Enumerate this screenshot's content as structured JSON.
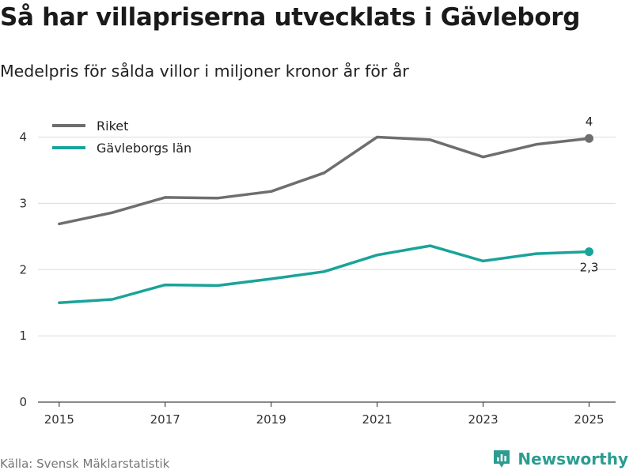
{
  "title": "Så har villapriserna utvecklats i Gävleborg",
  "subtitle": "Medelpris för sålda villor i miljoner kronor år för år",
  "source": "Källa: Svensk Mäklarstatistik",
  "brand": "Newsworthy",
  "colors": {
    "riket": "#6e6e6e",
    "gavleborg": "#1aa39a",
    "grid": "#dcdcdc",
    "axis": "#444444",
    "brand": "#2a9d90"
  },
  "chart_data": {
    "type": "line",
    "title": "Så har villapriserna utvecklats i Gävleborg",
    "subtitle": "Medelpris för sålda villor i miljoner kronor år för år",
    "xlabel": "",
    "ylabel": "",
    "x": [
      2015,
      2016,
      2017,
      2018,
      2019,
      2020,
      2021,
      2022,
      2023,
      2024,
      2025
    ],
    "xticks": [
      2015,
      2017,
      2019,
      2021,
      2023,
      2025
    ],
    "xtick_labels": [
      "2015",
      "2017",
      "2019",
      "2021",
      "2023",
      "2025"
    ],
    "yticks": [
      0,
      1,
      2,
      3,
      4
    ],
    "ytick_labels": [
      "0",
      "1",
      "2",
      "3",
      "4"
    ],
    "ylim": [
      0,
      4.4
    ],
    "xlim": [
      2014.6,
      2025.5
    ],
    "grid": true,
    "legend_position": "top-left",
    "series": [
      {
        "name": "Riket",
        "key": "riket",
        "values": [
          2.69,
          2.86,
          3.09,
          3.08,
          3.18,
          3.46,
          4.0,
          3.96,
          3.7,
          3.89,
          3.98
        ],
        "end_label": "4"
      },
      {
        "name": "Gävleborgs län",
        "key": "gavleborg",
        "values": [
          1.5,
          1.55,
          1.77,
          1.76,
          1.86,
          1.97,
          2.22,
          2.36,
          2.13,
          2.24,
          2.27
        ],
        "end_label": "2,3"
      }
    ]
  }
}
